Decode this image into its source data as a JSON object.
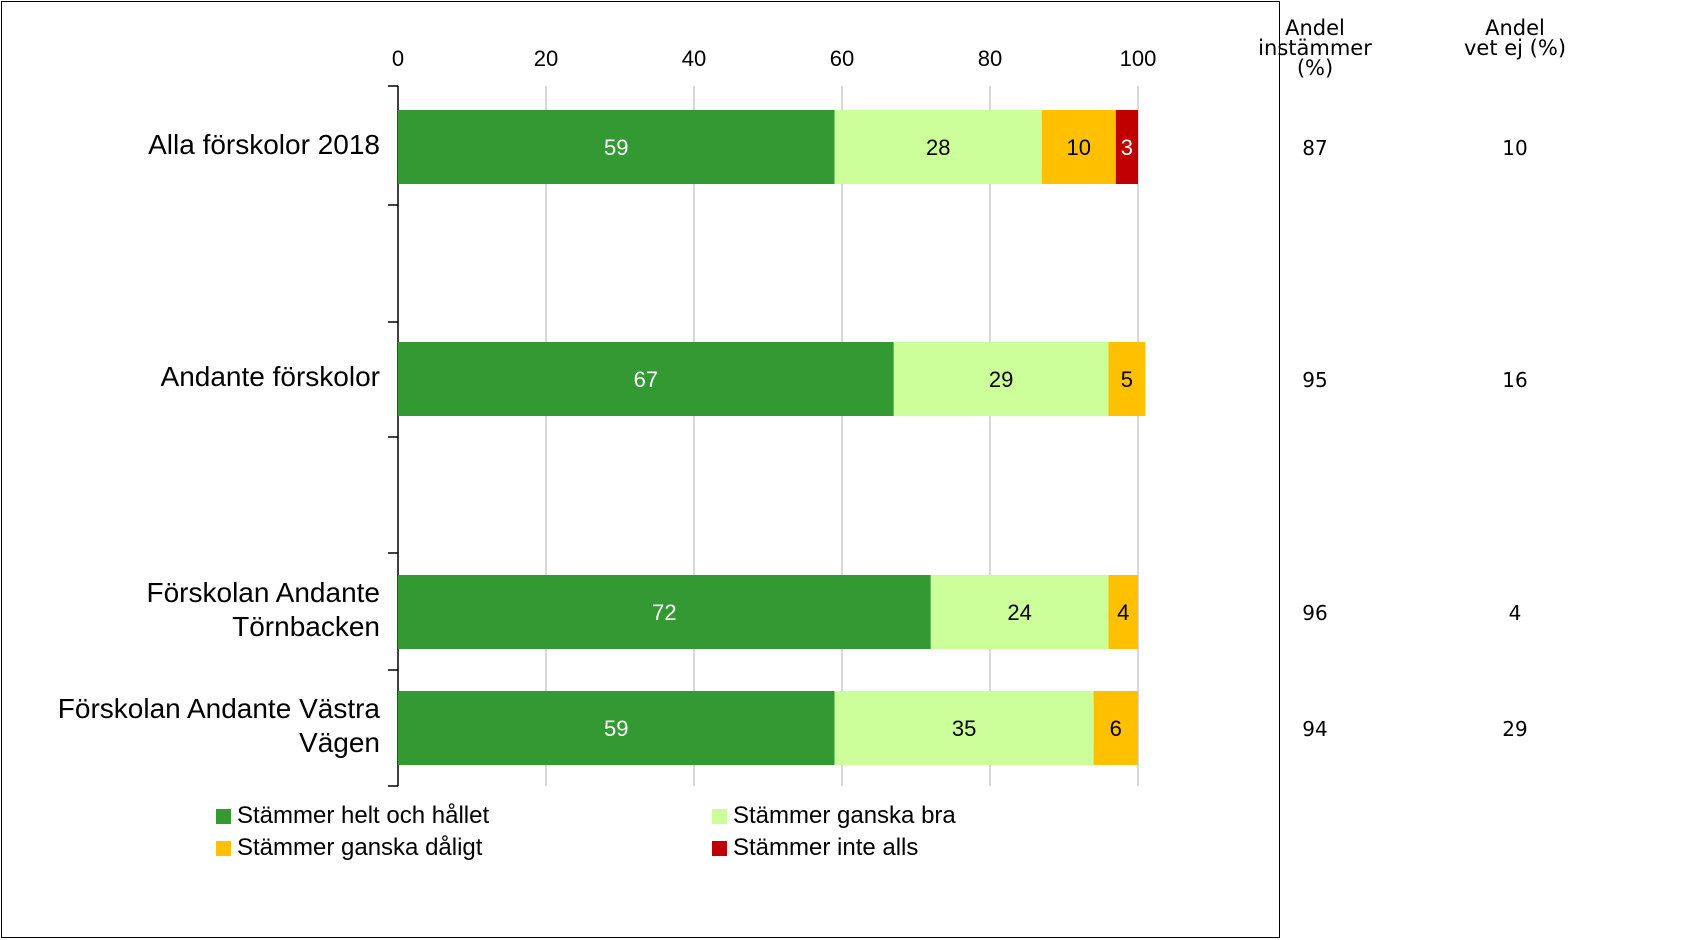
{
  "chart_data": {
    "type": "bar",
    "orientation": "horizontal",
    "stacked": true,
    "categories": [
      "Alla förskolor 2018",
      "Andante förskolor",
      "Förskolan Andante\nTörnbacken",
      "Förskolan Andante Västra\nVägen"
    ],
    "series": [
      {
        "name": "Stämmer helt och hållet",
        "color": "#339933",
        "label_color": "#ffffff",
        "values": [
          59,
          67,
          72,
          59
        ]
      },
      {
        "name": "Stämmer ganska bra",
        "color": "#ccff99",
        "label_color": "#000000",
        "values": [
          28,
          29,
          24,
          35
        ]
      },
      {
        "name": "Stämmer ganska dåligt",
        "color": "#ffc000",
        "label_color": "#000000",
        "values": [
          10,
          5,
          4,
          6
        ]
      },
      {
        "name": "Stämmer inte alls",
        "color": "#c00000",
        "label_color": "#ffffff",
        "values": [
          3,
          0,
          0,
          0
        ]
      }
    ],
    "xlim": [
      0,
      100
    ],
    "xticks": [
      0,
      20,
      40,
      60,
      80,
      100
    ],
    "grid": true,
    "legend_position": "bottom"
  },
  "side_table": {
    "headers": [
      "Andel instämmer\n(%)",
      "Andel\nvet ej (%)"
    ],
    "rows": [
      [
        "87",
        "10"
      ],
      [
        "95",
        "16"
      ],
      [
        "96",
        "4"
      ],
      [
        "94",
        "29"
      ]
    ]
  }
}
